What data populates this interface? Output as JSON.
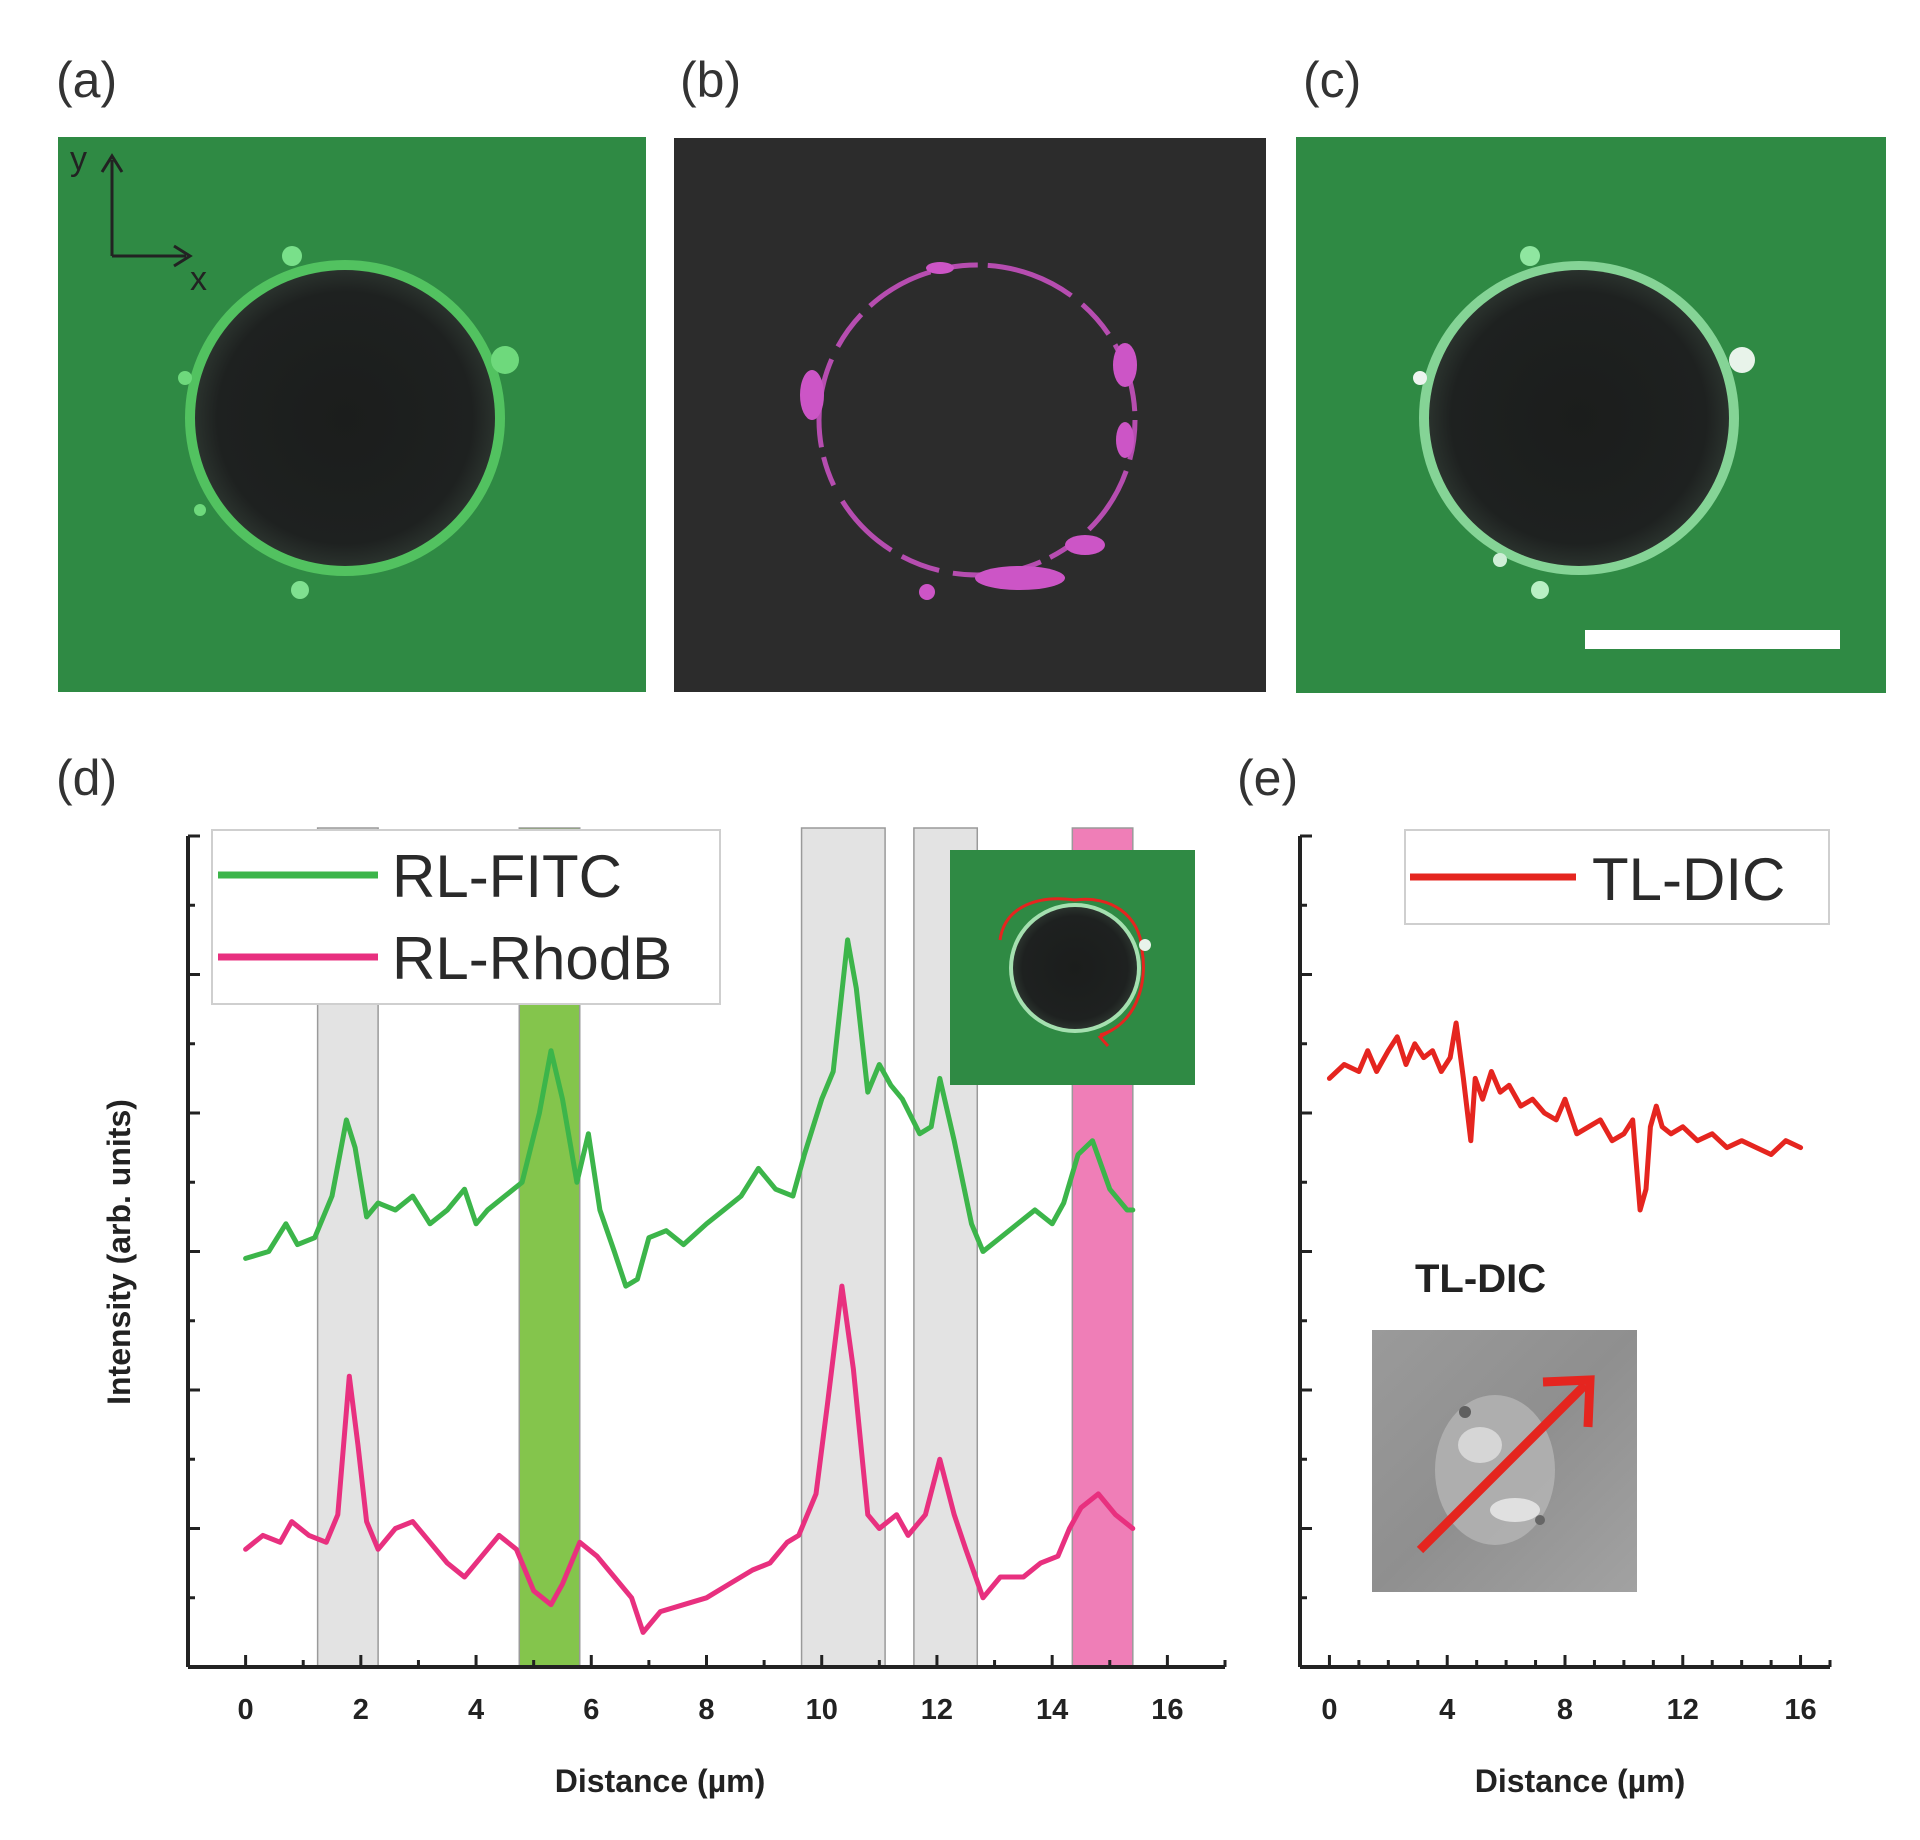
{
  "panels": {
    "a": {
      "label": "(a)",
      "axis_y": "y",
      "axis_x": "x"
    },
    "b": {
      "label": "(b)"
    },
    "c": {
      "label": "(c)"
    },
    "d": {
      "label": "(d)"
    },
    "e": {
      "label": "(e)",
      "inset_title": "TL-DIC"
    }
  },
  "colors": {
    "fitc": "#3cb54a",
    "rhodb": "#e8307f",
    "dic": "#e5251f",
    "gray_band": "#d9d9d9",
    "green_band": "#7dc242",
    "pink_band": "#ee77b3",
    "micrograph_green": "#2f8a44",
    "micrograph_dark": "#2c2c2c"
  },
  "chart_data": [
    {
      "panel": "d",
      "type": "line",
      "xlabel": "Distance (µm)",
      "ylabel": "Intensity (arb. units)",
      "xlim": [
        -1,
        17
      ],
      "ylim": [
        0,
        12
      ],
      "xticks": [
        0,
        2,
        4,
        6,
        8,
        10,
        12,
        14,
        16
      ],
      "yticks": [
        0,
        2,
        4,
        6,
        8,
        10,
        12
      ],
      "legend": "top-left",
      "grid": false,
      "bands": [
        {
          "x0": 1.25,
          "x1": 2.3,
          "color": "gray"
        },
        {
          "x0": 4.75,
          "x1": 5.8,
          "color": "green"
        },
        {
          "x0": 9.65,
          "x1": 11.1,
          "color": "gray"
        },
        {
          "x0": 11.6,
          "x1": 12.7,
          "color": "gray"
        },
        {
          "x0": 14.35,
          "x1": 15.4,
          "color": "pink"
        }
      ],
      "series": [
        {
          "name": "RL-FITC",
          "color": "#3cb54a",
          "x": [
            0,
            0.4,
            0.7,
            0.9,
            1.2,
            1.5,
            1.75,
            1.9,
            2.1,
            2.3,
            2.6,
            2.9,
            3.2,
            3.5,
            3.8,
            4.0,
            4.2,
            4.5,
            4.8,
            5.1,
            5.3,
            5.5,
            5.75,
            5.95,
            6.15,
            6.4,
            6.6,
            6.8,
            7.0,
            7.3,
            7.6,
            8.0,
            8.3,
            8.6,
            8.9,
            9.2,
            9.5,
            9.7,
            10.0,
            10.2,
            10.45,
            10.6,
            10.8,
            11.0,
            11.2,
            11.4,
            11.7,
            11.9,
            12.05,
            12.3,
            12.6,
            12.8,
            13.1,
            13.4,
            13.7,
            14.0,
            14.2,
            14.45,
            14.7,
            15.0,
            15.3,
            15.4
          ],
          "y": [
            5.9,
            6.0,
            6.4,
            6.1,
            6.2,
            6.8,
            7.9,
            7.5,
            6.5,
            6.7,
            6.6,
            6.8,
            6.4,
            6.6,
            6.9,
            6.4,
            6.6,
            6.8,
            7.0,
            8.0,
            8.9,
            8.2,
            7.0,
            7.7,
            6.6,
            6.0,
            5.5,
            5.6,
            6.2,
            6.3,
            6.1,
            6.4,
            6.6,
            6.8,
            7.2,
            6.9,
            6.8,
            7.4,
            8.2,
            8.6,
            10.5,
            9.8,
            8.3,
            8.7,
            8.4,
            8.2,
            7.7,
            7.8,
            8.5,
            7.6,
            6.4,
            6.0,
            6.2,
            6.4,
            6.6,
            6.4,
            6.7,
            7.4,
            7.6,
            6.9,
            6.6,
            6.6
          ]
        },
        {
          "name": "RL-RhodB",
          "color": "#e8307f",
          "x": [
            0,
            0.3,
            0.6,
            0.8,
            1.1,
            1.4,
            1.6,
            1.8,
            1.95,
            2.1,
            2.3,
            2.6,
            2.9,
            3.2,
            3.5,
            3.8,
            4.1,
            4.4,
            4.7,
            5.0,
            5.3,
            5.5,
            5.8,
            6.1,
            6.4,
            6.7,
            6.9,
            7.2,
            7.6,
            8.0,
            8.4,
            8.8,
            9.1,
            9.4,
            9.6,
            9.9,
            10.1,
            10.35,
            10.55,
            10.8,
            11.0,
            11.3,
            11.5,
            11.8,
            12.05,
            12.3,
            12.5,
            12.8,
            13.1,
            13.5,
            13.8,
            14.1,
            14.3,
            14.5,
            14.8,
            15.1,
            15.4
          ],
          "y": [
            1.7,
            1.9,
            1.8,
            2.1,
            1.9,
            1.8,
            2.2,
            4.2,
            3.2,
            2.1,
            1.7,
            2.0,
            2.1,
            1.8,
            1.5,
            1.3,
            1.6,
            1.9,
            1.7,
            1.1,
            0.9,
            1.2,
            1.8,
            1.6,
            1.3,
            1.0,
            0.5,
            0.8,
            0.9,
            1.0,
            1.2,
            1.4,
            1.5,
            1.8,
            1.9,
            2.5,
            3.8,
            5.5,
            4.3,
            2.2,
            2.0,
            2.2,
            1.9,
            2.2,
            3.0,
            2.2,
            1.7,
            1.0,
            1.3,
            1.3,
            1.5,
            1.6,
            2.0,
            2.3,
            2.5,
            2.2,
            2.0
          ]
        }
      ]
    },
    {
      "panel": "e",
      "type": "line",
      "xlabel": "Distance (µm)",
      "ylabel": "",
      "xlim": [
        -1,
        17
      ],
      "ylim": [
        0,
        12
      ],
      "xticks": [
        0,
        4,
        8,
        12,
        16
      ],
      "yticks": [
        0,
        2,
        4,
        6,
        8,
        10,
        12
      ],
      "legend": "top-right",
      "grid": false,
      "series": [
        {
          "name": "TL-DIC",
          "color": "#e5251f",
          "x": [
            0,
            0.5,
            1.0,
            1.3,
            1.6,
            2.0,
            2.3,
            2.6,
            2.9,
            3.2,
            3.5,
            3.8,
            4.1,
            4.3,
            4.55,
            4.8,
            4.95,
            5.2,
            5.5,
            5.8,
            6.1,
            6.5,
            6.9,
            7.3,
            7.7,
            8.0,
            8.4,
            8.8,
            9.2,
            9.6,
            10.0,
            10.3,
            10.55,
            10.75,
            10.9,
            11.1,
            11.3,
            11.6,
            12.0,
            12.5,
            13.0,
            13.5,
            14.0,
            14.5,
            15.0,
            15.5,
            16.0
          ],
          "y": [
            8.5,
            8.7,
            8.6,
            8.9,
            8.6,
            8.9,
            9.1,
            8.7,
            9.0,
            8.8,
            8.9,
            8.6,
            8.8,
            9.3,
            8.5,
            7.6,
            8.5,
            8.2,
            8.6,
            8.3,
            8.4,
            8.1,
            8.2,
            8.0,
            7.9,
            8.2,
            7.7,
            7.8,
            7.9,
            7.6,
            7.7,
            7.9,
            6.6,
            6.9,
            7.8,
            8.1,
            7.8,
            7.7,
            7.8,
            7.6,
            7.7,
            7.5,
            7.6,
            7.5,
            7.4,
            7.6,
            7.5
          ]
        }
      ]
    }
  ]
}
